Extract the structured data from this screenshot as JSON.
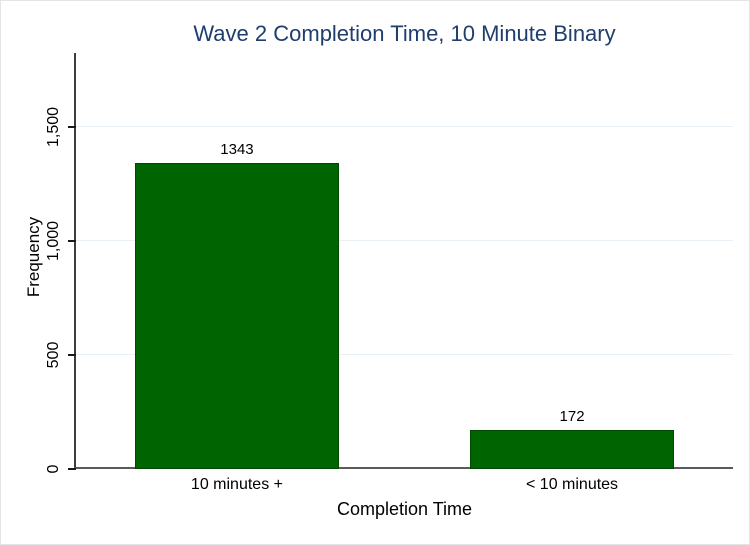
{
  "chart_data": {
    "type": "bar",
    "title": "Wave 2 Completion Time, 10 Minute Binary",
    "xlabel": "Completion Time",
    "ylabel": "Frequency",
    "categories": [
      "10 minutes +",
      "< 10 minutes"
    ],
    "values": [
      1343,
      172
    ],
    "bar_value_labels": [
      "1343",
      "172"
    ],
    "yticks": [
      0,
      500,
      1000,
      1500
    ],
    "ytick_labels": [
      "0",
      "500",
      "1,000",
      "1,500"
    ],
    "ylim": [
      0,
      1824
    ],
    "grid": true,
    "legend": "none",
    "colors": {
      "bar_fill": "#006400",
      "bar_border": "#014901",
      "title_text": "#1f3d6d",
      "gridline": "#e9f1f6",
      "x_axis_line": "#5a5a5a",
      "y_axis_line": "#3d3d3d",
      "tick_text": "#000000"
    }
  }
}
